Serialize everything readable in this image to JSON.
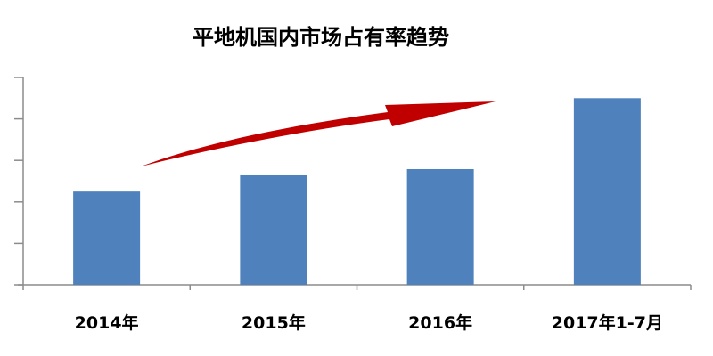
{
  "chart_data": {
    "type": "bar",
    "title": "平地机国内市场占有率趋势",
    "categories": [
      "2014年",
      "2015年",
      "2016年",
      "2017年1-7月"
    ],
    "values": [
      2.25,
      2.64,
      2.79,
      4.5
    ],
    "ylim": [
      0,
      5
    ],
    "ytick_count": 5,
    "grid": false,
    "legend": "none",
    "bar_color": "#4f81bd",
    "annotation": "red upward trend arrow",
    "arrow_color": "#c00000"
  }
}
